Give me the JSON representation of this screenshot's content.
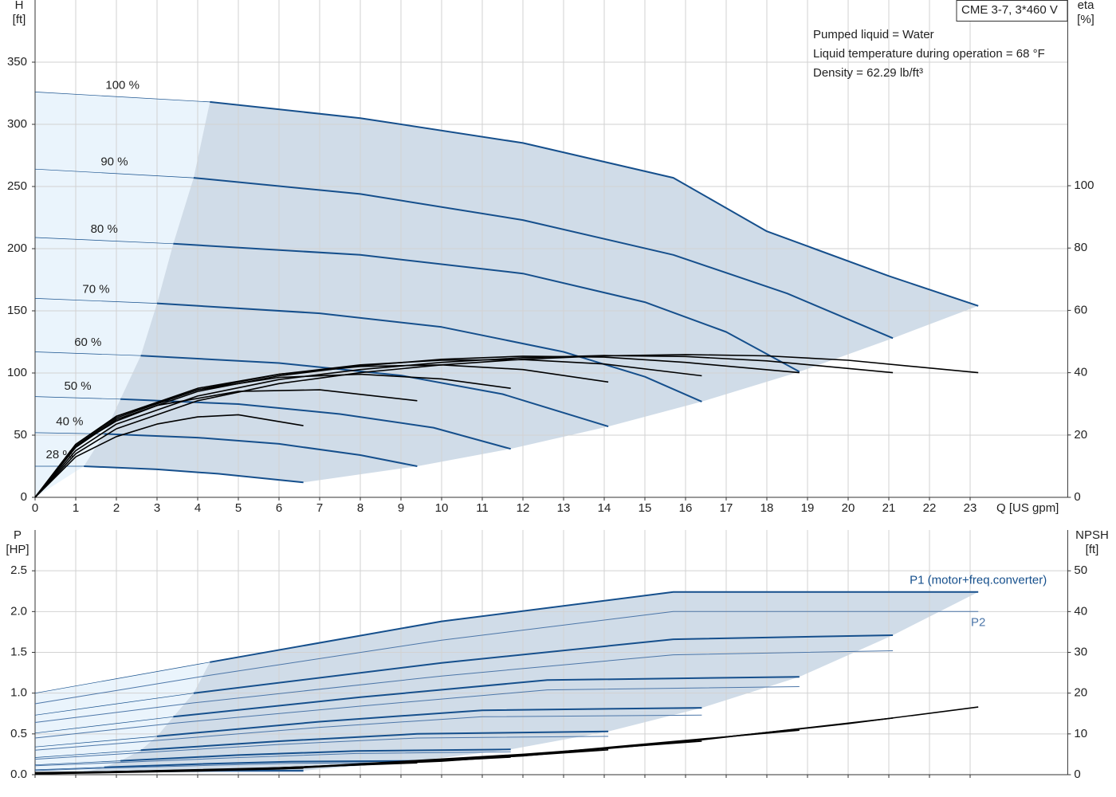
{
  "chart_data": [
    {
      "type": "line",
      "title": "CME 3-7, 3*460 V",
      "annotations": [
        "Pumped liquid = Water",
        "Liquid temperature during operation = 68 °F",
        "Density = 62.29 lb/ft³"
      ],
      "y_label": "H",
      "y_unit": "[ft]",
      "y2_label": "eta",
      "y2_unit": "[%]",
      "x_label": "Q [US gpm]",
      "xlim": [
        0,
        25.4
      ],
      "xticks": [
        0,
        1,
        2,
        3,
        4,
        5,
        6,
        7,
        8,
        9,
        10,
        11,
        12,
        13,
        14,
        15,
        16,
        17,
        18,
        19,
        20,
        21,
        22,
        23
      ],
      "show_xtick_labels": true,
      "ylim": [
        0,
        400
      ],
      "yticks": [
        0,
        50,
        100,
        150,
        200,
        250,
        300,
        350
      ],
      "y2lim": [
        0,
        159.6
      ],
      "y2ticks": [
        0,
        20,
        40,
        60,
        80,
        100
      ],
      "grid": true,
      "shade_color": "#d0dce8",
      "light_color": "#eaf4fc",
      "series_label_at": "start",
      "series": [
        {
          "name": "100 %",
          "color": "#154f8c",
          "width": 2,
          "shaded": true,
          "label_side": "above",
          "x": [
            0,
            4.3,
            8,
            12,
            15.7,
            18,
            21,
            23.2
          ],
          "values": [
            326,
            318,
            305,
            285,
            257,
            214,
            178,
            154
          ]
        },
        {
          "name": "90 %",
          "color": "#154f8c",
          "width": 2,
          "shaded": true,
          "label_side": "above",
          "x": [
            0,
            3.9,
            8,
            12,
            15.7,
            18.5,
            21.1
          ],
          "values": [
            264,
            257,
            244,
            223,
            195,
            164,
            128
          ]
        },
        {
          "name": "80 %",
          "color": "#154f8c",
          "width": 2,
          "shaded": true,
          "label_side": "above",
          "x": [
            0,
            3.4,
            8,
            12,
            15,
            17,
            18.8
          ],
          "values": [
            209,
            204,
            195,
            180,
            157,
            133,
            101
          ]
        },
        {
          "name": "70 %",
          "color": "#154f8c",
          "width": 2,
          "shaded": true,
          "label_side": "above",
          "x": [
            0,
            3,
            7,
            10,
            13,
            15,
            16.4
          ],
          "values": [
            160,
            156,
            148,
            137,
            117,
            97,
            77
          ]
        },
        {
          "name": "60 %",
          "color": "#154f8c",
          "width": 2,
          "shaded": true,
          "label_side": "above",
          "x": [
            0,
            2.6,
            6,
            9,
            11.5,
            14.1
          ],
          "values": [
            117,
            114,
            108,
            98,
            83,
            57
          ]
        },
        {
          "name": "50 %",
          "color": "#154f8c",
          "width": 2,
          "shaded": true,
          "label_side": "above",
          "x": [
            0,
            2.1,
            5,
            7.5,
            9.8,
            11.7
          ],
          "values": [
            81,
            79,
            75,
            67,
            56,
            39
          ]
        },
        {
          "name": "40 %",
          "color": "#154f8c",
          "width": 2,
          "shaded": true,
          "label_side": "above",
          "x": [
            0,
            1.7,
            4,
            6,
            8,
            9.4
          ],
          "values": [
            52,
            51,
            48,
            43,
            34,
            25
          ]
        },
        {
          "name": "28 %",
          "color": "#154f8c",
          "width": 2,
          "shaded": true,
          "label_side": "above",
          "x": [
            0,
            1.2,
            3,
            4.5,
            6.6
          ],
          "values": [
            25,
            25,
            22.5,
            19,
            12
          ]
        },
        {
          "color": "#000000",
          "width": 1.6,
          "axis": "y2",
          "x": [
            0,
            1,
            2,
            4,
            6,
            8,
            10,
            12,
            14,
            16,
            18,
            20,
            23.2
          ],
          "values": [
            0,
            14,
            22,
            31,
            36.5,
            40,
            42.5,
            44.3,
            45.4,
            45.8,
            45.4,
            44,
            40
          ]
        },
        {
          "color": "#000000",
          "width": 1.6,
          "axis": "y2",
          "x": [
            0,
            1,
            2,
            4,
            6,
            8,
            10,
            12,
            14,
            16,
            18,
            21.1
          ],
          "values": [
            0,
            15,
            23.5,
            32.5,
            37.8,
            41,
            43.3,
            44.8,
            45.5,
            45.2,
            43.8,
            40
          ]
        },
        {
          "color": "#000000",
          "width": 1.6,
          "axis": "y2",
          "x": [
            0,
            1,
            2,
            4,
            6,
            8,
            10,
            12,
            14,
            16,
            18.8
          ],
          "values": [
            0,
            16,
            25,
            34,
            39,
            42.2,
            44.3,
            45.3,
            45,
            43.3,
            40
          ]
        },
        {
          "color": "#000000",
          "width": 1.6,
          "axis": "y2",
          "x": [
            0,
            1,
            2,
            4,
            6,
            8,
            10,
            12,
            14,
            16.4
          ],
          "values": [
            0,
            16.5,
            25.5,
            34.5,
            39.5,
            42.5,
            44,
            44.2,
            42.8,
            39
          ]
        },
        {
          "color": "#000000",
          "width": 1.6,
          "axis": "y2",
          "x": [
            0,
            1,
            2,
            4,
            6,
            8,
            10,
            12,
            14.1
          ],
          "values": [
            0,
            17,
            26,
            35,
            39.5,
            42,
            42.5,
            41,
            37
          ]
        },
        {
          "color": "#000000",
          "width": 1.6,
          "axis": "y2",
          "x": [
            0,
            1,
            2,
            4,
            6,
            8,
            10,
            11.7
          ],
          "values": [
            0,
            17,
            26,
            34.5,
            38.5,
            39.5,
            38,
            35
          ]
        },
        {
          "color": "#000000",
          "width": 1.6,
          "axis": "y2",
          "x": [
            0,
            1,
            2,
            3,
            5,
            7,
            9.4
          ],
          "values": [
            0,
            16.5,
            24.5,
            29.5,
            34,
            34.5,
            31
          ]
        },
        {
          "color": "#000000",
          "width": 1.6,
          "axis": "y2",
          "x": [
            0,
            1,
            2,
            3,
            4,
            5,
            6.6
          ],
          "values": [
            0,
            13,
            19.5,
            23.5,
            25.8,
            26.5,
            23
          ]
        }
      ]
    },
    {
      "type": "line",
      "y_label": "P",
      "y_unit": "[HP]",
      "y2_label": "NPSH",
      "y2_unit": "[ft]",
      "xlim": [
        0,
        25.4
      ],
      "xticks": [
        0,
        1,
        2,
        3,
        4,
        5,
        6,
        7,
        8,
        9,
        10,
        11,
        12,
        13,
        14,
        15,
        16,
        17,
        18,
        19,
        20,
        21,
        22,
        23
      ],
      "show_xtick_labels": false,
      "ylim": [
        0,
        3.0
      ],
      "yticks": [
        {
          "value": 0,
          "label": "0.0"
        },
        0.5,
        {
          "value": 1,
          "label": "1.0"
        },
        1.5,
        {
          "value": 2,
          "label": "2.0"
        },
        2.5
      ],
      "y2lim": [
        0,
        60
      ],
      "y2ticks": [
        0,
        10,
        20,
        30,
        40,
        50
      ],
      "grid": true,
      "shade_color": "#d0dce8",
      "light_color": "#eaf4fc",
      "series_label_at": "end",
      "series": [
        {
          "name": "P1 (motor+freq.converter)",
          "label_side": "above",
          "color": "#154f8c",
          "width": 2,
          "shaded": true,
          "x": [
            0,
            4.3,
            10,
            15.7,
            23.2
          ],
          "values": [
            1.0,
            1.38,
            1.88,
            2.24,
            2.24
          ]
        },
        {
          "color": "#154f8c",
          "width": 2,
          "shaded": true,
          "x": [
            0,
            3.9,
            10,
            15.7,
            21.1
          ],
          "values": [
            0.73,
            1.0,
            1.37,
            1.66,
            1.71
          ]
        },
        {
          "color": "#154f8c",
          "width": 2,
          "shaded": true,
          "x": [
            0,
            3.4,
            8,
            12.6,
            18.8
          ],
          "values": [
            0.51,
            0.71,
            0.95,
            1.16,
            1.2
          ]
        },
        {
          "color": "#154f8c",
          "width": 2,
          "shaded": true,
          "x": [
            0,
            3,
            7,
            11,
            16.4
          ],
          "values": [
            0.34,
            0.47,
            0.65,
            0.79,
            0.82
          ]
        },
        {
          "color": "#154f8c",
          "width": 2,
          "shaded": true,
          "x": [
            0,
            2.6,
            6,
            9.4,
            14.1
          ],
          "values": [
            0.21,
            0.3,
            0.41,
            0.5,
            0.53
          ]
        },
        {
          "color": "#154f8c",
          "width": 2,
          "shaded": true,
          "x": [
            0,
            2.1,
            5,
            7.9,
            11.7
          ],
          "values": [
            0.12,
            0.17,
            0.24,
            0.29,
            0.31
          ]
        },
        {
          "color": "#154f8c",
          "width": 2,
          "shaded": true,
          "x": [
            0,
            1.7,
            4,
            6.3,
            9.4
          ],
          "values": [
            0.06,
            0.09,
            0.13,
            0.16,
            0.17
          ]
        },
        {
          "color": "#154f8c",
          "width": 2,
          "shaded": true,
          "x": [
            0,
            1.2,
            4.4,
            6.6
          ],
          "values": [
            0.02,
            0.03,
            0.05,
            0.05
          ]
        },
        {
          "name": "P2",
          "label_side": "below",
          "color": "#4c76a8",
          "width": 1,
          "x": [
            0,
            4.3,
            10,
            15.7,
            23.2
          ],
          "values": [
            0.87,
            1.22,
            1.65,
            2.0,
            2.0
          ]
        },
        {
          "color": "#4c76a8",
          "width": 1,
          "x": [
            0,
            3.9,
            10,
            15.7,
            21.1
          ],
          "values": [
            0.64,
            0.88,
            1.21,
            1.47,
            1.52
          ]
        },
        {
          "color": "#4c76a8",
          "width": 1,
          "x": [
            0,
            3.4,
            8,
            12.6,
            18.8
          ],
          "values": [
            0.45,
            0.63,
            0.84,
            1.04,
            1.08
          ]
        },
        {
          "color": "#4c76a8",
          "width": 1,
          "x": [
            0,
            3,
            7,
            11,
            16.4
          ],
          "values": [
            0.3,
            0.42,
            0.58,
            0.71,
            0.73
          ]
        },
        {
          "color": "#4c76a8",
          "width": 1,
          "x": [
            0,
            2.6,
            6,
            9.4,
            14.1
          ],
          "values": [
            0.19,
            0.27,
            0.37,
            0.45,
            0.47
          ]
        },
        {
          "color": "#4c76a8",
          "width": 1,
          "x": [
            0,
            2.1,
            5,
            7.9,
            11.7
          ],
          "values": [
            0.11,
            0.15,
            0.21,
            0.26,
            0.28
          ]
        },
        {
          "color": "#4c76a8",
          "width": 1,
          "x": [
            0,
            1.7,
            4,
            6.3,
            9.4
          ],
          "values": [
            0.05,
            0.08,
            0.11,
            0.14,
            0.15
          ]
        },
        {
          "color": "#4c76a8",
          "width": 1,
          "x": [
            0,
            1.2,
            4.4,
            6.6
          ],
          "values": [
            0.02,
            0.03,
            0.04,
            0.04
          ]
        },
        {
          "color": "#000000",
          "width": 1.6,
          "axis": "y2",
          "x": [
            0,
            4,
            8,
            12,
            16,
            20,
            23.2
          ],
          "values": [
            0.5,
            1.0,
            2.4,
            4.8,
            8.2,
            12.5,
            16.6
          ]
        },
        {
          "color": "#000000",
          "width": 1.6,
          "axis": "y2",
          "x": [
            0,
            6,
            12,
            16,
            21.1
          ],
          "values": [
            0.4,
            1.4,
            4.6,
            8.1,
            13.9
          ]
        },
        {
          "color": "#000000",
          "width": 1.6,
          "axis": "y2",
          "x": [
            0,
            6,
            12,
            18.8
          ],
          "values": [
            0.4,
            1.5,
            4.8,
            10.9
          ]
        },
        {
          "color": "#000000",
          "width": 1.6,
          "axis": "y2",
          "x": [
            0,
            6,
            12,
            16.4
          ],
          "values": [
            0.3,
            1.5,
            5,
            8.2
          ]
        },
        {
          "color": "#000000",
          "width": 1.6,
          "axis": "y2",
          "x": [
            0,
            6,
            10,
            14.1
          ],
          "values": [
            0.3,
            1.6,
            3.3,
            6.1
          ]
        },
        {
          "color": "#000000",
          "width": 1.6,
          "axis": "y2",
          "x": [
            0,
            6,
            9,
            11.7
          ],
          "values": [
            0.3,
            1.7,
            2.9,
            4.3
          ]
        },
        {
          "color": "#000000",
          "width": 1.6,
          "axis": "y2",
          "x": [
            0,
            5,
            9.4
          ],
          "values": [
            0.2,
            1.3,
            2.9
          ]
        },
        {
          "color": "#000000",
          "width": 1.6,
          "axis": "y2",
          "x": [
            0,
            4,
            6.6
          ],
          "values": [
            0.2,
            0.9,
            1.6
          ]
        }
      ]
    }
  ]
}
